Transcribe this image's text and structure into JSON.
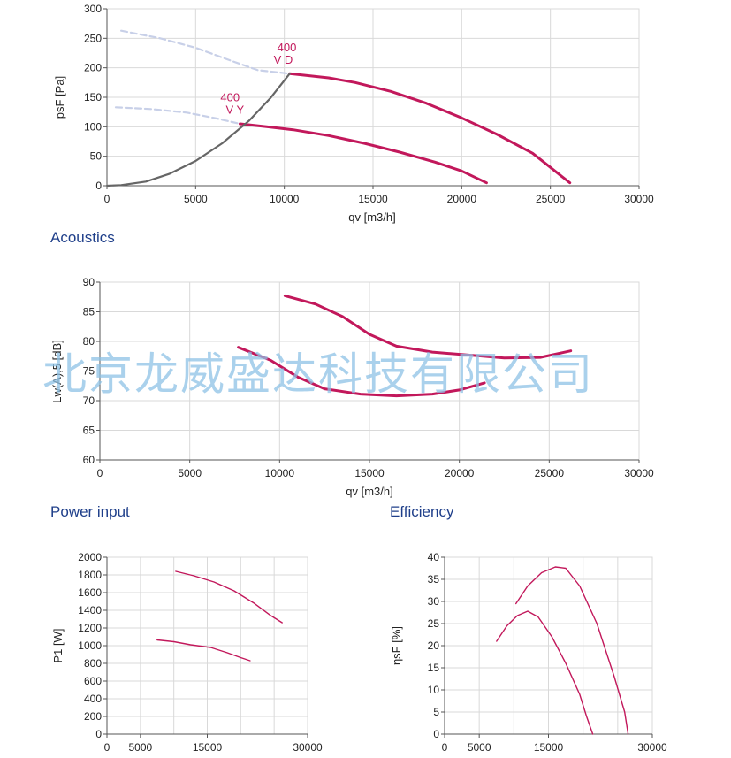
{
  "sections": {
    "acoustics": "Acoustics",
    "power_input": "Power input",
    "efficiency": "Efficiency"
  },
  "watermark": "北京龙威盛达科技有限公司",
  "colors": {
    "curve": "#c2185b",
    "system": "#666666",
    "dashed": "#c8d0e8",
    "grid": "#d9d9d9",
    "section_text": "#1f3f8a"
  },
  "chart_data": [
    {
      "id": "pressure",
      "type": "line",
      "xlabel": "qv [m3/h]",
      "ylabel": "psF [Pa]",
      "xlim": [
        0,
        30000
      ],
      "ylim": [
        0,
        300
      ],
      "xticks": [
        0,
        5000,
        10000,
        15000,
        20000,
        25000,
        30000
      ],
      "yticks": [
        0,
        50,
        100,
        150,
        200,
        250,
        300
      ],
      "annotations": [
        {
          "text": "400",
          "x": 9600,
          "y": 228
        },
        {
          "text": "V D",
          "x": 9400,
          "y": 207
        },
        {
          "text": "400",
          "x": 6400,
          "y": 143
        },
        {
          "text": "V Y",
          "x": 6700,
          "y": 122
        }
      ],
      "series": [
        {
          "kind": "curve",
          "points": [
            [
              10300,
              190
            ],
            [
              12500,
              183
            ],
            [
              14000,
              175
            ],
            [
              16000,
              160
            ],
            [
              18000,
              140
            ],
            [
              20000,
              115
            ],
            [
              22000,
              87
            ],
            [
              24000,
              55
            ],
            [
              26100,
              5
            ]
          ]
        },
        {
          "kind": "curve",
          "points": [
            [
              7500,
              105
            ],
            [
              9000,
              100
            ],
            [
              10500,
              95
            ],
            [
              12500,
              85
            ],
            [
              14500,
              72
            ],
            [
              16500,
              57
            ],
            [
              18500,
              40
            ],
            [
              20000,
              25
            ],
            [
              21400,
              5
            ]
          ]
        },
        {
          "kind": "system",
          "points": [
            [
              0,
              0
            ],
            [
              800,
              1
            ],
            [
              2200,
              7
            ],
            [
              3500,
              20
            ],
            [
              5000,
              42
            ],
            [
              6500,
              72
            ],
            [
              8000,
              110
            ],
            [
              9200,
              148
            ],
            [
              10300,
              190
            ]
          ]
        },
        {
          "kind": "dashed",
          "points": [
            [
              800,
              263
            ],
            [
              3000,
              250
            ],
            [
              5000,
              234
            ],
            [
              7000,
              212
            ],
            [
              8500,
              196
            ],
            [
              10300,
              190
            ]
          ]
        },
        {
          "kind": "dashed",
          "points": [
            [
              500,
              133
            ],
            [
              2500,
              130
            ],
            [
              4500,
              124
            ],
            [
              6200,
              114
            ],
            [
              7500,
              105
            ]
          ]
        }
      ]
    },
    {
      "id": "acoustics",
      "type": "line",
      "xlabel": "qv [m3/h]",
      "ylabel": "Lw(A),5 [dB]",
      "xlim": [
        0,
        30000
      ],
      "ylim": [
        60,
        90
      ],
      "xticks": [
        0,
        5000,
        10000,
        15000,
        20000,
        25000,
        30000
      ],
      "yticks": [
        60,
        65,
        70,
        75,
        80,
        85,
        90
      ],
      "series": [
        {
          "kind": "curve",
          "points": [
            [
              10300,
              87.7
            ],
            [
              12000,
              86.3
            ],
            [
              13500,
              84.2
            ],
            [
              15000,
              81.2
            ],
            [
              16500,
              79.2
            ],
            [
              18500,
              78.2
            ],
            [
              20500,
              77.7
            ],
            [
              22500,
              77.2
            ],
            [
              24500,
              77.3
            ],
            [
              26200,
              78.4
            ]
          ]
        },
        {
          "kind": "curve",
          "points": [
            [
              7700,
              79
            ],
            [
              9500,
              76.8
            ],
            [
              11000,
              74
            ],
            [
              12500,
              72
            ],
            [
              14500,
              71.1
            ],
            [
              16500,
              70.8
            ],
            [
              18500,
              71.1
            ],
            [
              20000,
              71.8
            ],
            [
              21400,
              73
            ]
          ]
        }
      ]
    },
    {
      "id": "power",
      "type": "line",
      "xlabel": "",
      "ylabel": "P1 [W]",
      "xlim": [
        0,
        30000
      ],
      "ylim": [
        0,
        2000
      ],
      "xticks": [
        0,
        5000,
        15000,
        30000
      ],
      "yticks": [
        0,
        200,
        400,
        600,
        800,
        1000,
        1200,
        1400,
        1600,
        1800,
        2000
      ],
      "grid_x": [
        0,
        5000,
        10000,
        15000,
        20000,
        25000,
        30000
      ],
      "series": [
        {
          "kind": "curve",
          "points": [
            [
              10300,
              1840
            ],
            [
              13000,
              1790
            ],
            [
              16000,
              1720
            ],
            [
              19000,
              1620
            ],
            [
              22000,
              1480
            ],
            [
              24500,
              1340
            ],
            [
              26200,
              1260
            ]
          ]
        },
        {
          "kind": "curve",
          "points": [
            [
              7500,
              1065
            ],
            [
              10000,
              1045
            ],
            [
              12500,
              1010
            ],
            [
              15500,
              980
            ],
            [
              18000,
              920
            ],
            [
              20000,
              865
            ],
            [
              21400,
              830
            ]
          ]
        }
      ]
    },
    {
      "id": "efficiency",
      "type": "line",
      "xlabel": "",
      "ylabel": "ηsF [%]",
      "xlim": [
        0,
        30000
      ],
      "ylim": [
        0,
        40
      ],
      "xticks": [
        0,
        5000,
        15000,
        30000
      ],
      "yticks": [
        0,
        5,
        10,
        15,
        20,
        25,
        30,
        35,
        40
      ],
      "grid_x": [
        0,
        5000,
        10000,
        15000,
        20000,
        25000,
        30000
      ],
      "series": [
        {
          "kind": "curve",
          "points": [
            [
              10300,
              29.5
            ],
            [
              12000,
              33.5
            ],
            [
              14000,
              36.5
            ],
            [
              16000,
              37.8
            ],
            [
              17500,
              37.5
            ],
            [
              19500,
              33.5
            ],
            [
              22000,
              25
            ],
            [
              24500,
              13
            ],
            [
              26000,
              5
            ],
            [
              26500,
              0
            ]
          ]
        },
        {
          "kind": "curve",
          "points": [
            [
              7500,
              21
            ],
            [
              9000,
              24.5
            ],
            [
              10500,
              26.8
            ],
            [
              12000,
              27.8
            ],
            [
              13500,
              26.5
            ],
            [
              15500,
              22
            ],
            [
              17500,
              16
            ],
            [
              19500,
              9
            ],
            [
              20500,
              4
            ],
            [
              21400,
              0
            ]
          ]
        }
      ]
    }
  ]
}
